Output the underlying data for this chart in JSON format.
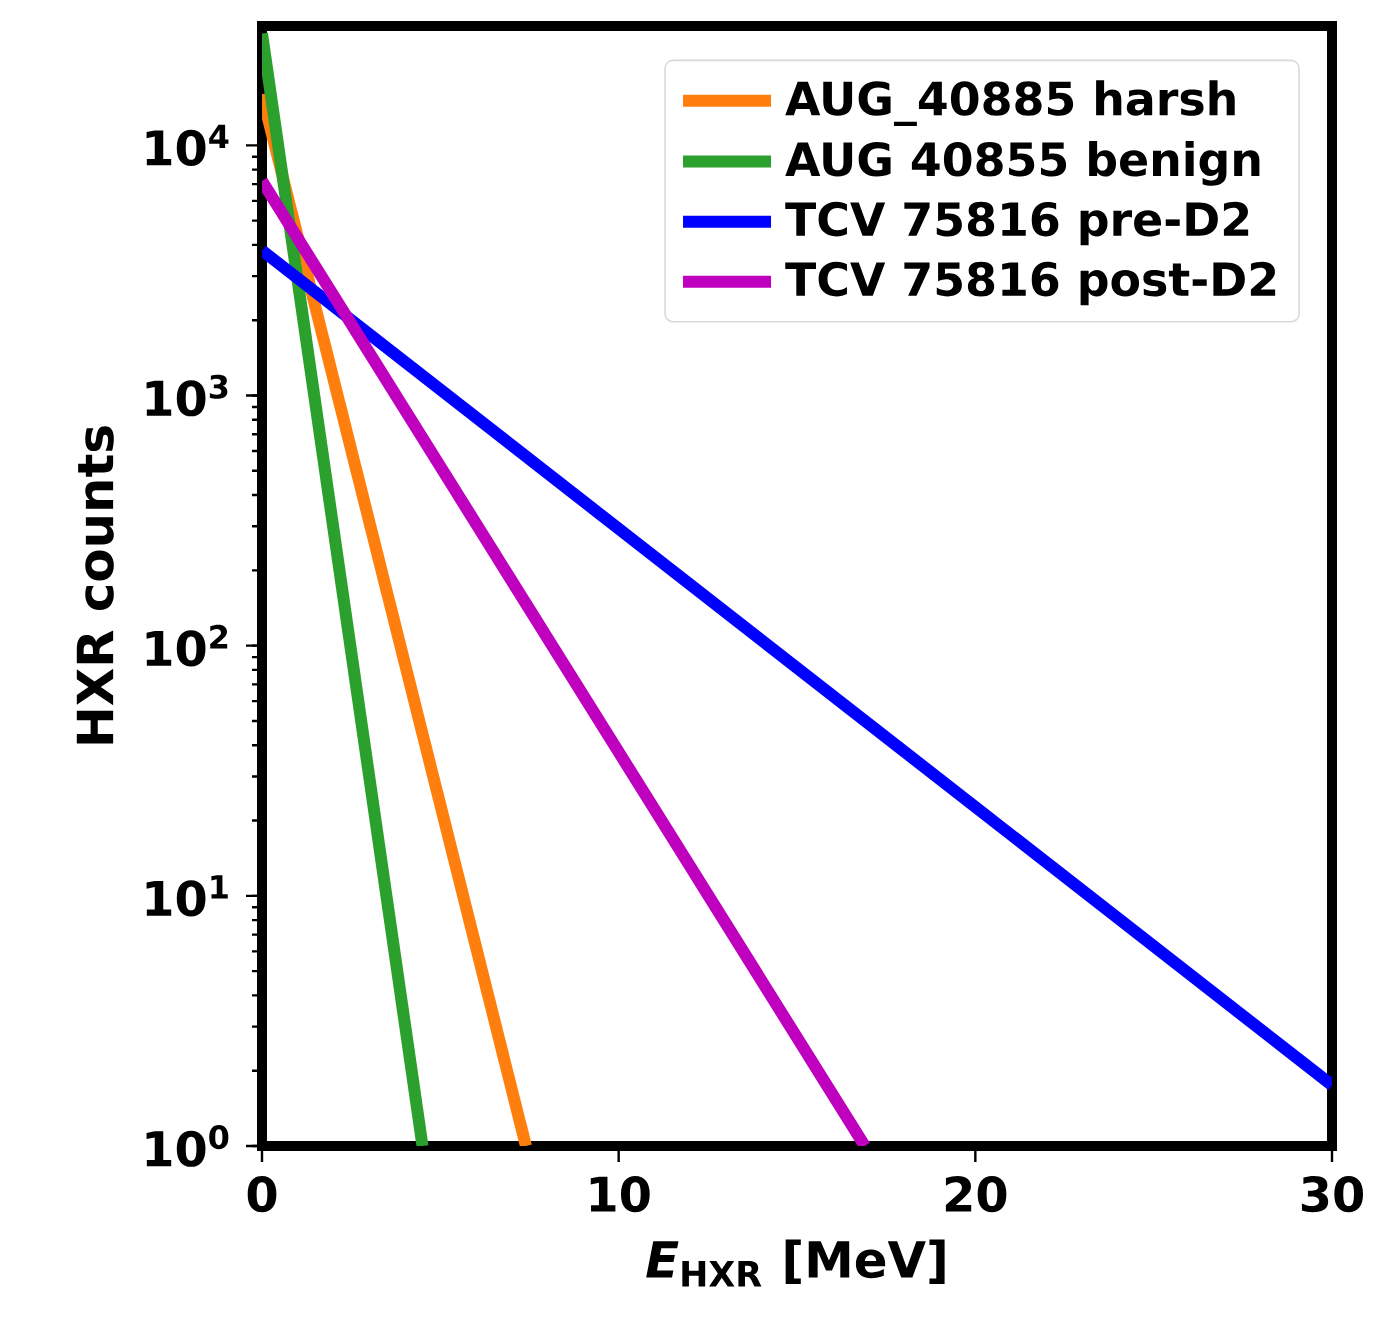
{
  "chart_data": {
    "type": "line",
    "xlabel": "*E*$_{HXR}$ [MeV]",
    "ylabel": "HXR counts",
    "xlim": [
      0,
      30
    ],
    "ylim": [
      1,
      30000
    ],
    "xticks": [
      0,
      10,
      20,
      30
    ],
    "yticks": [
      {
        "value": 1,
        "label": "10$^{0}$"
      },
      {
        "value": 10,
        "label": "10$^{1}$"
      },
      {
        "value": 100,
        "label": "10$^{2}$"
      },
      {
        "value": 1000,
        "label": "10$^{3}$"
      },
      {
        "value": 10000,
        "label": "10$^{4}$"
      }
    ],
    "log": "y",
    "legend": "top right",
    "series": [
      {
        "name": "AUG_40885 harsh",
        "color": "#ff7f0e",
        "x": [
          0,
          7.4
        ],
        "values": [
          16000,
          1
        ]
      },
      {
        "name": "AUG 40855 benign",
        "color": "#2ca02c",
        "x": [
          0,
          4.5
        ],
        "values": [
          28000,
          1
        ]
      },
      {
        "name": "TCV 75816 pre-D2",
        "color": "#0000ff",
        "x": [
          0,
          30
        ],
        "values": [
          3800,
          1.75
        ]
      },
      {
        "name": "TCV 75816 post-D2",
        "color": "#bf00bf",
        "x": [
          0,
          16.9
        ],
        "values": [
          7200,
          1
        ]
      }
    ]
  }
}
